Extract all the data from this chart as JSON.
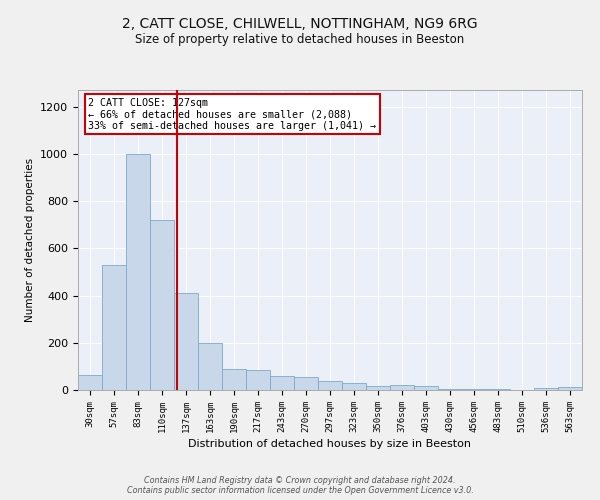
{
  "title": "2, CATT CLOSE, CHILWELL, NOTTINGHAM, NG9 6RG",
  "subtitle": "Size of property relative to detached houses in Beeston",
  "xlabel": "Distribution of detached houses by size in Beeston",
  "ylabel": "Number of detached properties",
  "categories": [
    "30sqm",
    "57sqm",
    "83sqm",
    "110sqm",
    "137sqm",
    "163sqm",
    "190sqm",
    "217sqm",
    "243sqm",
    "270sqm",
    "297sqm",
    "323sqm",
    "350sqm",
    "376sqm",
    "403sqm",
    "430sqm",
    "456sqm",
    "483sqm",
    "510sqm",
    "536sqm",
    "563sqm"
  ],
  "values": [
    65,
    530,
    1000,
    720,
    410,
    200,
    90,
    85,
    60,
    55,
    40,
    30,
    15,
    20,
    18,
    5,
    5,
    5,
    1,
    10,
    12
  ],
  "bar_color": "#c8d8ea",
  "bar_edge_color": "#7aaac8",
  "background_color": "#eaeff8",
  "fig_background_color": "#f0f0f0",
  "grid_color": "#ffffff",
  "annotation_text": "2 CATT CLOSE: 127sqm\n← 66% of detached houses are smaller (2,088)\n33% of semi-detached houses are larger (1,041) →",
  "annotation_box_color": "#ffffff",
  "annotation_box_edge_color": "#cc0000",
  "vline_x": 3.62,
  "vline_color": "#cc0000",
  "ylim": [
    0,
    1270
  ],
  "yticks": [
    0,
    200,
    400,
    600,
    800,
    1000,
    1200
  ],
  "footer": "Contains HM Land Registry data © Crown copyright and database right 2024.\nContains public sector information licensed under the Open Government Licence v3.0."
}
